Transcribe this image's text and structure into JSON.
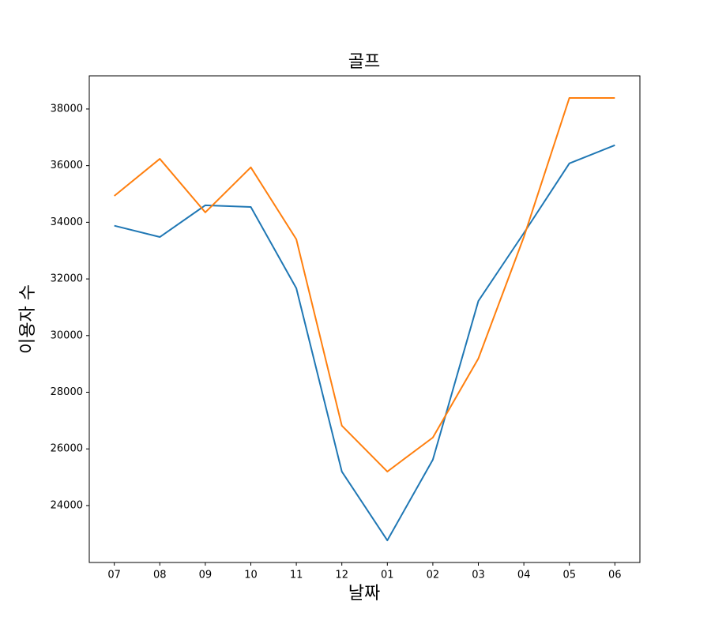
{
  "chart_data": {
    "type": "line",
    "title": "골프",
    "xlabel": "날짜",
    "ylabel": "이용자 수",
    "categories": [
      "07",
      "08",
      "09",
      "10",
      "11",
      "12",
      "01",
      "02",
      "03",
      "04",
      "05",
      "06"
    ],
    "series": [
      {
        "color": "#1f77b4",
        "values": [
          33880,
          33480,
          34600,
          34540,
          31670,
          25200,
          22770,
          25620,
          31220,
          33620,
          36080,
          36720
        ]
      },
      {
        "color": "#ff7f0e",
        "values": [
          34930,
          36240,
          34350,
          35940,
          33400,
          26820,
          25200,
          26400,
          29190,
          33480,
          38390,
          38390
        ]
      }
    ],
    "ylim": [
      21990,
      39170
    ],
    "yticks": [
      24000,
      26000,
      28000,
      30000,
      32000,
      34000,
      36000,
      38000
    ],
    "grid": false
  }
}
